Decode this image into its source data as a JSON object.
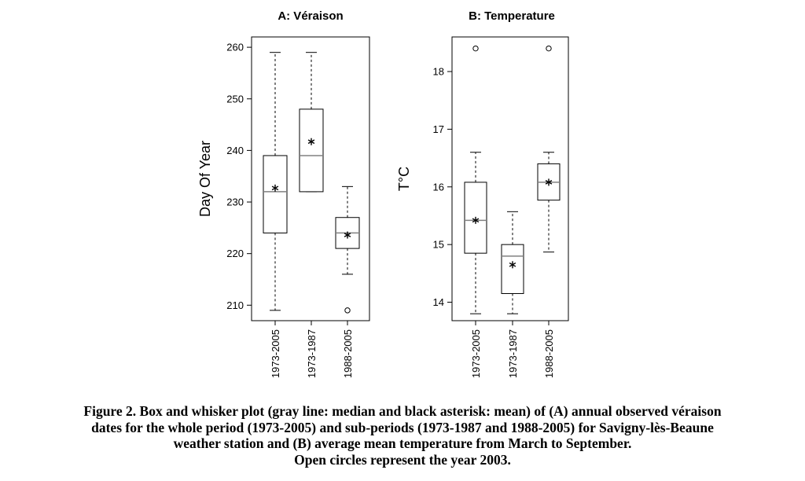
{
  "chart_data": [
    {
      "type": "box",
      "title": "A: Véraison",
      "xlabel": "",
      "ylabel": "Day Of Year",
      "ylim": [
        207,
        262
      ],
      "yticks": [
        210,
        220,
        230,
        240,
        250,
        260
      ],
      "categories": [
        "1973-2005",
        "1973-1987",
        "1988-2005"
      ],
      "boxes": [
        {
          "whisker_low": 209,
          "q1": 224,
          "median": 232,
          "q3": 239,
          "whisker_high": 259,
          "mean": 232.7,
          "outliers": []
        },
        {
          "whisker_low": 232,
          "q1": 232,
          "median": 239,
          "q3": 248,
          "whisker_high": 259,
          "mean": 241.7,
          "outliers": []
        },
        {
          "whisker_low": 216,
          "q1": 221,
          "median": 224,
          "q3": 227,
          "whisker_high": 233,
          "mean": 223.6,
          "outliers": [
            209
          ]
        }
      ]
    },
    {
      "type": "box",
      "title": "B: Temperature",
      "xlabel": "",
      "ylabel": "T°C",
      "ylim": [
        13.68,
        18.6
      ],
      "yticks": [
        14,
        15,
        16,
        17,
        18
      ],
      "categories": [
        "1973-2005",
        "1973-1987",
        "1988-2005"
      ],
      "boxes": [
        {
          "whisker_low": 13.8,
          "q1": 14.85,
          "median": 15.42,
          "q3": 16.08,
          "whisker_high": 16.6,
          "mean": 15.42,
          "outliers": [
            18.4
          ]
        },
        {
          "whisker_low": 13.8,
          "q1": 14.15,
          "median": 14.8,
          "q3": 15.0,
          "whisker_high": 15.57,
          "mean": 14.65,
          "outliers": []
        },
        {
          "whisker_low": 14.87,
          "q1": 15.77,
          "median": 16.08,
          "q3": 16.4,
          "whisker_high": 16.6,
          "mean": 16.08,
          "outliers": [
            18.4
          ]
        }
      ]
    }
  ],
  "caption": {
    "line1": "Figure 2. Box and whisker plot (gray line: median and black asterisk: mean) of (A) annual observed véraison",
    "line2": "dates for the whole period (1973-2005) and sub-periods (1973-1987 and 1988-2005) for Savigny-lès-Beaune",
    "line3": "weather station and (B) average mean temperature from March to September.",
    "line4": "Open circles represent the year 2003."
  },
  "colors": {
    "median": "#808080",
    "stroke": "#000000",
    "background": "#ffffff"
  }
}
